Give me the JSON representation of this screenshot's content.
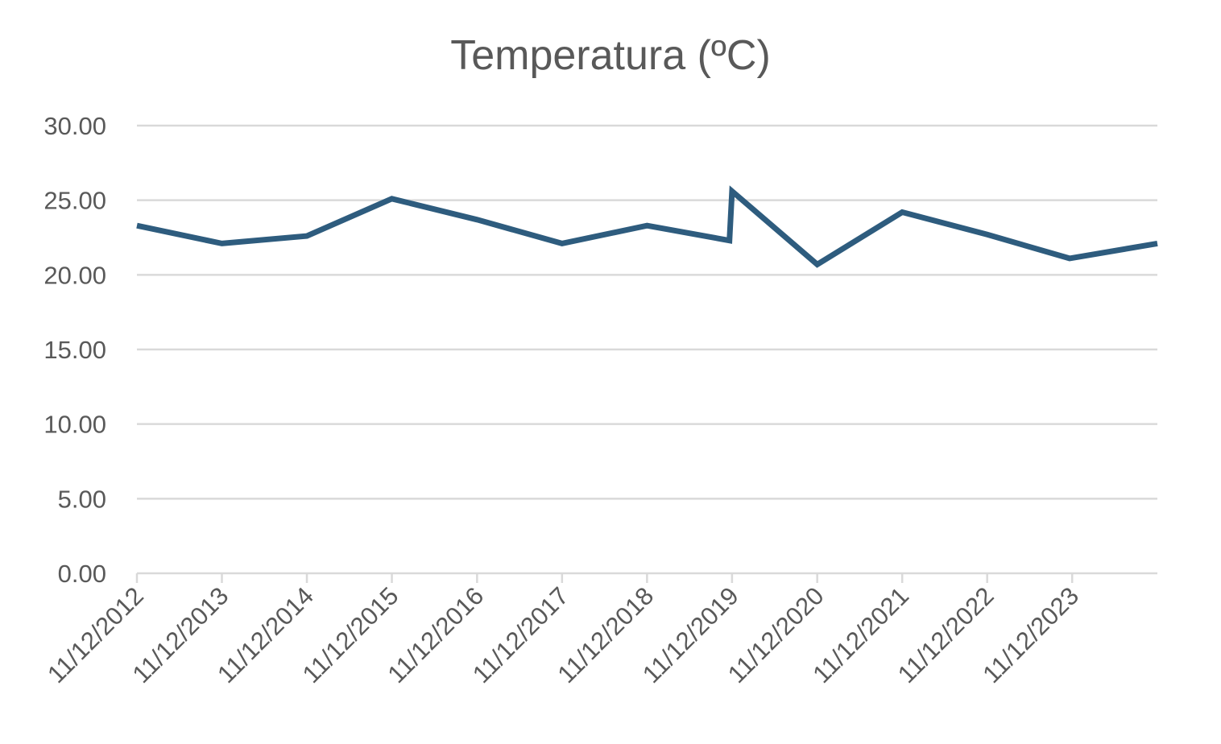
{
  "chart_data": {
    "type": "line",
    "title": "Temperatura (ºC)",
    "xlabel": "",
    "ylabel": "",
    "ylim": [
      0,
      30
    ],
    "y_ticks": [
      "0.00",
      "5.00",
      "10.00",
      "15.00",
      "20.00",
      "25.00",
      "30.00"
    ],
    "x_tick_labels": [
      "11/12/2012",
      "11/12/2013",
      "11/12/2014",
      "11/12/2015",
      "11/12/2016",
      "11/12/2017",
      "11/12/2018",
      "11/12/2019",
      "11/12/2020",
      "11/12/2021",
      "11/12/2022",
      "11/12/2023"
    ],
    "x_range": [
      "2012-12-11",
      "2024-12-11"
    ],
    "grid": true,
    "legend": "none",
    "series": [
      {
        "color": "#2e5c7e",
        "points": [
          {
            "x": "2012-12-11",
            "y": 23.3
          },
          {
            "x": "2013-12-11",
            "y": 22.1
          },
          {
            "x": "2014-12-11",
            "y": 22.6
          },
          {
            "x": "2015-12-11",
            "y": 25.1
          },
          {
            "x": "2016-12-11",
            "y": 23.7
          },
          {
            "x": "2017-12-11",
            "y": 22.1
          },
          {
            "x": "2018-12-11",
            "y": 23.3
          },
          {
            "x": "2019-11-30",
            "y": 22.3
          },
          {
            "x": "2019-12-11",
            "y": 25.6
          },
          {
            "x": "2020-12-11",
            "y": 20.7
          },
          {
            "x": "2021-12-11",
            "y": 24.2
          },
          {
            "x": "2022-12-11",
            "y": 22.7
          },
          {
            "x": "2023-11-30",
            "y": 21.1
          },
          {
            "x": "2024-12-11",
            "y": 22.1
          }
        ]
      }
    ]
  }
}
